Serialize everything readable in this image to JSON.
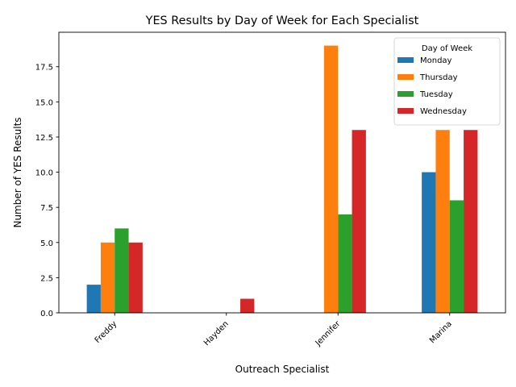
{
  "chart_data": {
    "type": "bar",
    "title": "YES Results by Day of Week for Each Specialist",
    "xlabel": "Outreach Specialist",
    "ylabel": "Number of YES Results",
    "categories": [
      "Freddy",
      "Hayden",
      "Jennifer",
      "Marina"
    ],
    "ylim": [
      0,
      19.95
    ],
    "yticks": [
      0.0,
      2.5,
      5.0,
      7.5,
      10.0,
      12.5,
      15.0,
      17.5
    ],
    "ytick_labels": [
      "0.0",
      "2.5",
      "5.0",
      "7.5",
      "10.0",
      "12.5",
      "15.0",
      "17.5"
    ],
    "grid": false,
    "legend": {
      "title": "Day of Week",
      "placement": "top-right"
    },
    "series": [
      {
        "name": "Monday",
        "color": "#1f77b4",
        "values": [
          2,
          0,
          0,
          10
        ]
      },
      {
        "name": "Thursday",
        "color": "#ff7f0e",
        "values": [
          5,
          0,
          19,
          13
        ]
      },
      {
        "name": "Tuesday",
        "color": "#2ca02c",
        "values": [
          6,
          0,
          7,
          8
        ]
      },
      {
        "name": "Wednesday",
        "color": "#d62728",
        "values": [
          5,
          1,
          13,
          13
        ]
      }
    ]
  }
}
